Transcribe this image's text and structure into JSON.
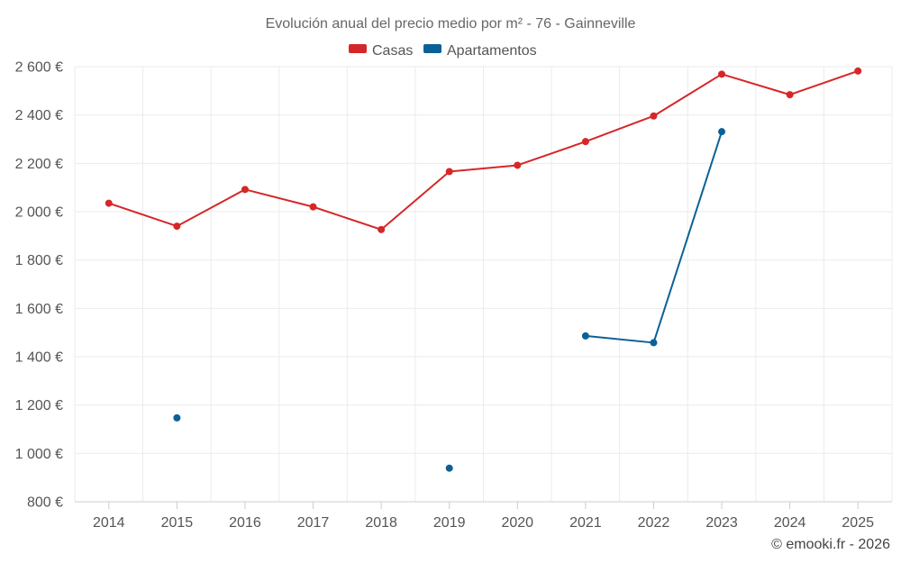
{
  "chart_data": {
    "type": "line",
    "title": "Evolución anual del precio medio por m² - 76 - Gainneville",
    "categories": [
      "2014",
      "2015",
      "2016",
      "2017",
      "2018",
      "2019",
      "2020",
      "2021",
      "2022",
      "2023",
      "2024",
      "2025"
    ],
    "ylim": [
      800,
      2600
    ],
    "yticks": [
      800,
      1000,
      1200,
      1400,
      1600,
      1800,
      2000,
      2200,
      2400,
      2600
    ],
    "ytick_labels": [
      "800 €",
      "1 000 €",
      "1 200 €",
      "1 400 €",
      "1 600 €",
      "1 800 €",
      "2 000 €",
      "2 200 €",
      "2 400 €",
      "2 600 €"
    ],
    "grid": true,
    "legend_position": "top-center",
    "series": [
      {
        "name": "Casas",
        "color": "#d62728",
        "values": [
          2035,
          1940,
          2092,
          2020,
          1926,
          2166,
          2192,
          2290,
          2396,
          2569,
          2484,
          2582
        ]
      },
      {
        "name": "Apartamentos",
        "color": "#0b6196",
        "values": [
          null,
          1147,
          null,
          null,
          null,
          939,
          null,
          1486,
          1458,
          2331,
          null,
          null
        ]
      }
    ]
  },
  "credit": "© emooki.fr - 2026"
}
